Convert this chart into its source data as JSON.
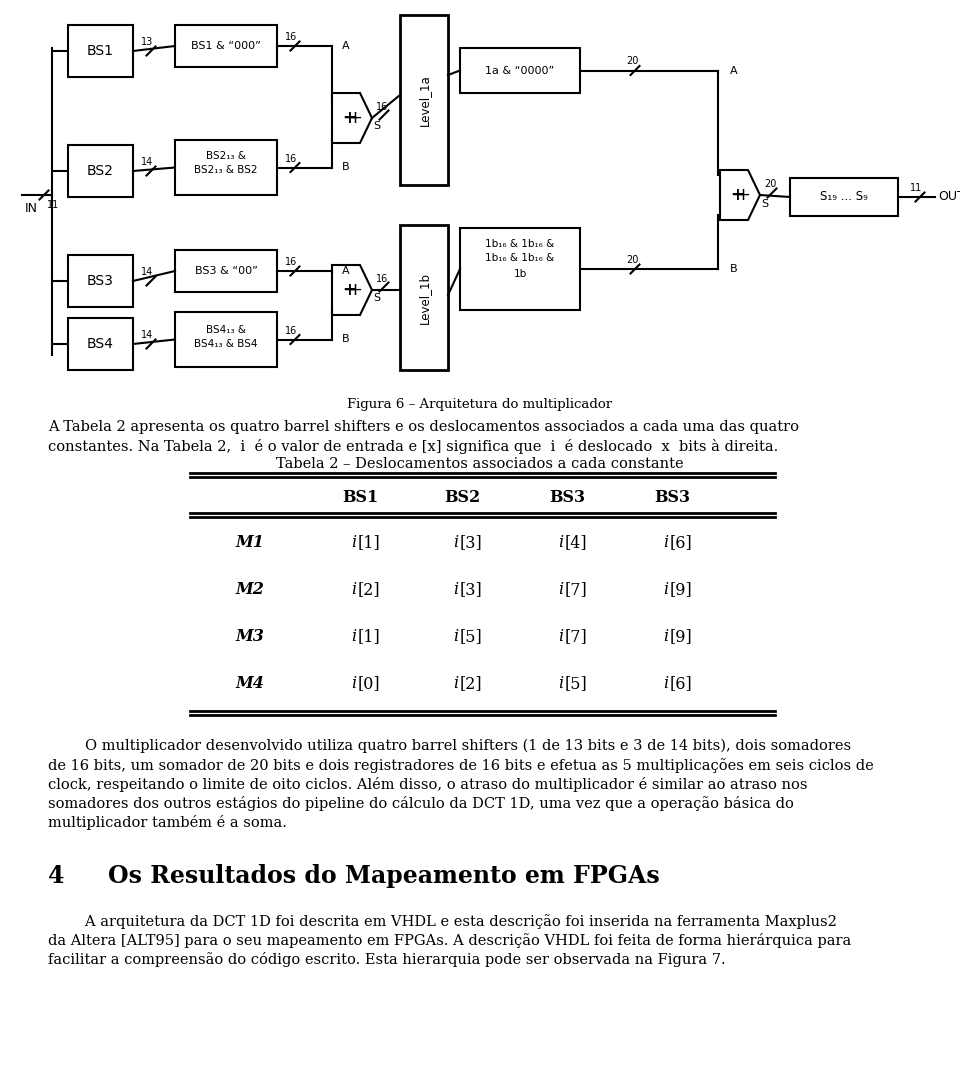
{
  "fig_width": 9.6,
  "fig_height": 10.77,
  "bg_color": "#ffffff",
  "table_title": "Tabela 2 – Deslocamentos associados a cada constante",
  "col_headers": [
    "",
    "BS1",
    "BS2",
    "BS3",
    "BS3"
  ],
  "row_labels": [
    "M1",
    "M2",
    "M3",
    "M4"
  ],
  "table_data": [
    [
      "[1]",
      "[3]",
      "[4]",
      "[6]"
    ],
    [
      "[2]",
      "[3]",
      "[7]",
      "[9]"
    ],
    [
      "[1]",
      "[5]",
      "[7]",
      "[9]"
    ],
    [
      "[0]",
      "[2]",
      "[5]",
      "[6]"
    ]
  ],
  "fig_caption": "Figura 6 – Arquitetura do multiplicador",
  "intro_line1": "A Tabela 2 apresenta os quatro barrel shifters e os deslocamentos associados a cada uma das quatro",
  "intro_line2": "constantes. Na Tabela 2,  i  é o valor de entrada e [x] significa que  i  é deslocado  x  bits à direita.",
  "body_line1": "        O multiplicador desenvolvido utiliza quatro barrel shifters (1 de 13 bits e 3 de 14 bits), dois somadores",
  "body_line2": "de 16 bits, um somador de 20 bits e dois registradores de 16 bits e efetua as 5 multiplicações em seis ciclos de",
  "body_line3": "clock, respeitando o limite de oito ciclos. Além disso, o atraso do multiplicador é similar ao atraso nos",
  "body_line4": "somadores dos outros estágios do pipeline do cálculo da DCT 1D, uma vez que a operação básica do",
  "body_line5": "multiplicador também é a soma.",
  "section_num": "4",
  "section_title": "Os Resultados do Mapeamento em FPGAs",
  "end_line1": "        A arquitetura da DCT 1D foi descrita em VHDL e esta descrição foi inserida na ferramenta Maxplus2",
  "end_line2": "da Altera [ALT95] para o seu mapeamento em FPGAs. A descrição VHDL foi feita de forma hierárquica para",
  "end_line3": "facilitar a compreensão do código escrito. Esta hierarquia pode ser observada na Figura 7."
}
